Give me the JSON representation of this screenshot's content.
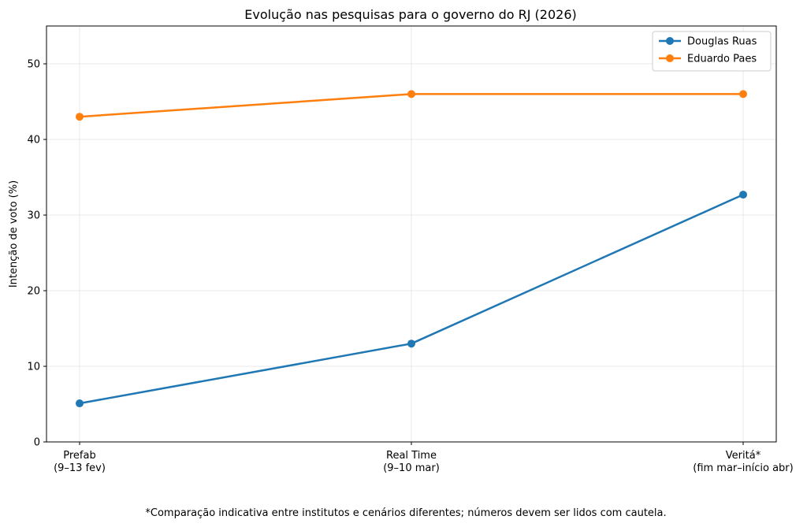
{
  "chart_data": {
    "type": "line",
    "title": "Evolução nas pesquisas para o governo do RJ (2026)",
    "xlabel": "",
    "ylabel": "Intenção de voto (%)",
    "ylim": [
      0,
      55
    ],
    "yticks": [
      0,
      10,
      20,
      30,
      40,
      50
    ],
    "grid": true,
    "legend_position": "top-right",
    "categories": [
      [
        "Prefab",
        "(9–13 fev)"
      ],
      [
        "Real Time",
        "(9–10 mar)"
      ],
      [
        "Veritá*",
        "(fim mar–início abr)"
      ]
    ],
    "series": [
      {
        "name": "Douglas Ruas",
        "color": "#1f77b4",
        "values": [
          5.1,
          13,
          32.7
        ]
      },
      {
        "name": "Eduardo Paes",
        "color": "#ff7f0e",
        "values": [
          43,
          46,
          46
        ]
      }
    ],
    "footnote": "*Comparação indicativa entre institutos e cenários diferentes; números devem ser lidos com cautela."
  }
}
